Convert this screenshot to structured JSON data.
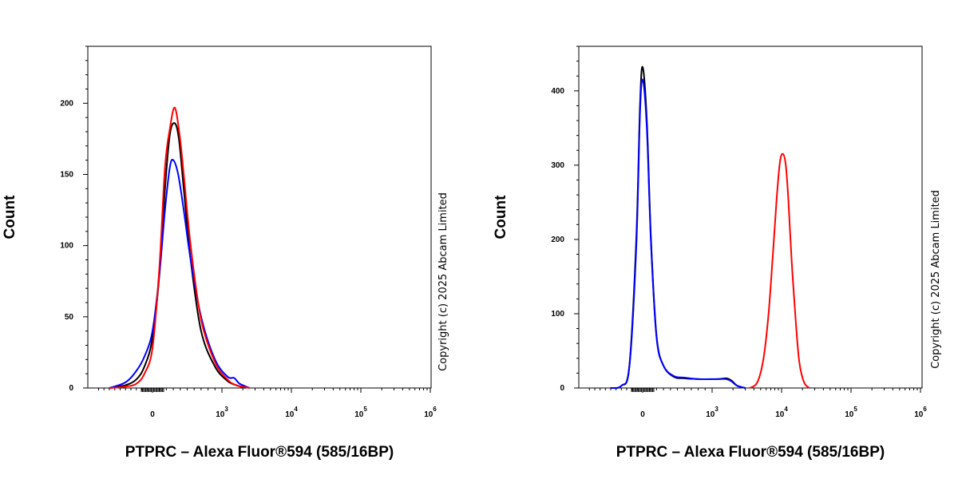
{
  "chart_data": [
    {
      "type": "line",
      "xlabel": "PTPRC – Alexa Fluor®594 (585/16BP)",
      "ylabel": "Count",
      "xscale": "biexponential",
      "ylim": [
        0,
        240
      ],
      "yticks": [
        0,
        50,
        100,
        150,
        200
      ],
      "xticks": [
        {
          "value": 0,
          "base": "0",
          "exp": ""
        },
        {
          "value": 1000,
          "base": "10",
          "exp": "3"
        },
        {
          "value": 10000,
          "base": "10",
          "exp": "4"
        },
        {
          "value": 100000,
          "base": "10",
          "exp": "5"
        },
        {
          "value": 1000000,
          "base": "10",
          "exp": "6"
        }
      ],
      "annotation": "Copyright (c) 2025 Abcam Limited",
      "series": [
        {
          "color": "#000000",
          "x": [
            -800,
            -500,
            -300,
            -150,
            0,
            100,
            180,
            250,
            320,
            380,
            450,
            550,
            700,
            900,
            1200,
            1600,
            2200
          ],
          "y": [
            0,
            2,
            6,
            15,
            35,
            80,
            140,
            178,
            186,
            175,
            140,
            90,
            40,
            15,
            5,
            2,
            0
          ]
        },
        {
          "color": "#0000ff",
          "x": [
            -800,
            -500,
            -300,
            -150,
            0,
            100,
            180,
            250,
            300,
            370,
            450,
            550,
            700,
            900,
            1200,
            1500,
            1800,
            2500
          ],
          "y": [
            0,
            4,
            12,
            22,
            40,
            80,
            125,
            155,
            160,
            150,
            125,
            90,
            50,
            20,
            8,
            7,
            3,
            0
          ]
        },
        {
          "color": "#ff0000",
          "x": [
            -800,
            -500,
            -300,
            -150,
            0,
            100,
            180,
            250,
            320,
            390,
            450,
            550,
            700,
            900,
            1200,
            1600,
            2500
          ],
          "y": [
            0,
            1,
            3,
            10,
            28,
            85,
            155,
            182,
            197,
            178,
            150,
            100,
            48,
            18,
            6,
            2,
            0
          ]
        }
      ]
    },
    {
      "type": "line",
      "xlabel": "PTPRC – Alexa Fluor®594 (585/16BP)",
      "ylabel": "Count",
      "xscale": "biexponential",
      "ylim": [
        0,
        460
      ],
      "yticks": [
        0,
        100,
        200,
        300,
        400
      ],
      "xticks": [
        {
          "value": 0,
          "base": "0",
          "exp": ""
        },
        {
          "value": 1000,
          "base": "10",
          "exp": "3"
        },
        {
          "value": 10000,
          "base": "10",
          "exp": "4"
        },
        {
          "value": 100000,
          "base": "10",
          "exp": "5"
        },
        {
          "value": 1000000,
          "base": "10",
          "exp": "6"
        }
      ],
      "annotation": "Copyright (c) 2025 Abcam Limited",
      "series": [
        {
          "color": "#000000",
          "x": [
            -600,
            -400,
            -250,
            -120,
            -50,
            0,
            60,
            120,
            200,
            300,
            450,
            600,
            800,
            1200,
            1600,
            1900,
            2300,
            3000
          ],
          "y": [
            0,
            3,
            30,
            200,
            380,
            432,
            360,
            200,
            70,
            30,
            15,
            13,
            12,
            12,
            13,
            10,
            3,
            0
          ]
        },
        {
          "color": "#0000ff",
          "x": [
            -600,
            -400,
            -250,
            -120,
            -50,
            0,
            60,
            120,
            200,
            300,
            450,
            600,
            800,
            1200,
            1600,
            1900,
            2300,
            3000
          ],
          "y": [
            0,
            3,
            28,
            190,
            370,
            415,
            350,
            195,
            68,
            30,
            16,
            14,
            12,
            12,
            12,
            9,
            3,
            0
          ]
        },
        {
          "color": "#ff0000",
          "x": [
            3500,
            4500,
            5500,
            6500,
            7500,
            8500,
            9500,
            10500,
            11500,
            12500,
            14000,
            16000,
            18000,
            21000,
            25000
          ],
          "y": [
            0,
            8,
            40,
            100,
            180,
            255,
            305,
            315,
            300,
            255,
            170,
            90,
            35,
            8,
            0
          ]
        }
      ]
    }
  ]
}
